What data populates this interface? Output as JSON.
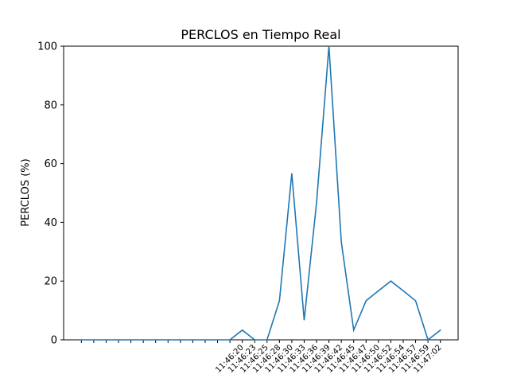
{
  "chart_data": {
    "type": "line",
    "title": "PERCLOS en Tiempo Real",
    "xlabel": "",
    "ylabel": "PERCLOS (%)",
    "ylim": [
      0,
      100
    ],
    "yticks": [
      0,
      20,
      40,
      60,
      80,
      100
    ],
    "grid": false,
    "line_color": "#1f77b4",
    "x": [
      "",
      "",
      "",
      "",
      "",
      "",
      "",
      "",
      "",
      "",
      "",
      "",
      "",
      "11:46:20",
      "11:46:23",
      "11:46:25",
      "11:46:28",
      "11:46:30",
      "11:46:33",
      "11:46:36",
      "11:46:39",
      "11:46:42",
      "11:46:45",
      "11:46:47",
      "11:46:50",
      "11:46:52",
      "11:46:54",
      "11:46:57",
      "11:46:59",
      "11:47:02"
    ],
    "values": [
      0,
      0,
      0,
      0,
      0,
      0,
      0,
      0,
      0,
      0,
      0,
      0,
      0,
      3.3,
      0,
      0,
      13.3,
      56.7,
      6.7,
      46.7,
      100,
      33.3,
      3.3,
      13.3,
      16.7,
      20,
      16.7,
      13.3,
      0,
      3.3
    ]
  }
}
